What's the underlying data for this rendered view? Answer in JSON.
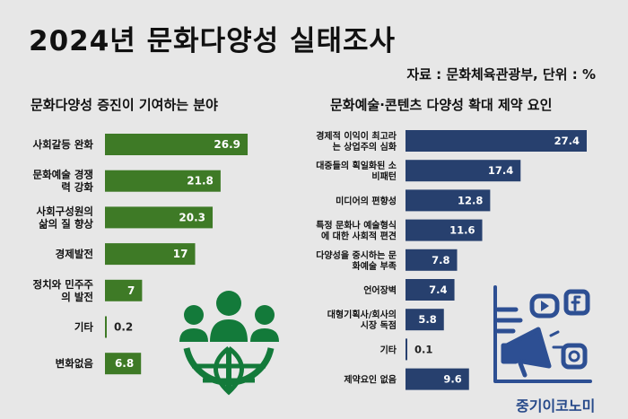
{
  "header": {
    "title": "2024년 문화다양성 실태조사",
    "source": "자료 : 문화체육관광부, 단위 : %"
  },
  "colors": {
    "left_bar": "#3e7a26",
    "right_bar": "#27406e",
    "background": "#e7e7e7",
    "icon_green": "#137a3a",
    "icon_blue": "#2d4f93"
  },
  "icons": {
    "left": "people-globe-icon",
    "right": "megaphone-social-media-icon"
  },
  "watermark": "중기이코노미",
  "chart_data": [
    {
      "type": "bar",
      "orientation": "horizontal",
      "title": "문화다양성 증진이 기여하는 분야",
      "categories": [
        [
          "사회갈등 완화"
        ],
        [
          "문화예술 경쟁",
          "력 강화"
        ],
        [
          "사회구성원의",
          "삶의 질 향상"
        ],
        [
          "경제발전"
        ],
        [
          "정치와 민주주",
          "의 발전"
        ],
        [
          "기타"
        ],
        [
          "변화없음"
        ]
      ],
      "values": [
        26.9,
        21.8,
        20.3,
        17,
        7,
        0.2,
        6.8
      ],
      "value_labels": [
        "26.9",
        "21.8",
        "20.3",
        "17",
        "7",
        "0.2",
        "6.8"
      ],
      "xlim": [
        0,
        27.4
      ]
    },
    {
      "type": "bar",
      "orientation": "horizontal",
      "title": "문화예술·콘텐츠 다양성 확대 제약 요인",
      "categories": [
        [
          "경제적 이익이 최고라",
          "는 상업주의 심화"
        ],
        [
          "대중들의 획일화된 소",
          "비패턴"
        ],
        [
          "미디어의 편향성"
        ],
        [
          "특정 문화나 예술형식",
          "에 대한 사회적 편견"
        ],
        [
          "다양성을 중시하는 문",
          "화예술 부족"
        ],
        [
          "언어장벽"
        ],
        [
          "대형기획사/회사의",
          "시장 독점"
        ],
        [
          "기타"
        ],
        [
          "제약요인 없음"
        ]
      ],
      "values": [
        27.4,
        17.4,
        12.8,
        11.6,
        7.8,
        7.4,
        5.8,
        0.1,
        9.6
      ],
      "value_labels": [
        "27.4",
        "17.4",
        "12.8",
        "11.6",
        "7.8",
        "7.4",
        "5.8",
        "0.1",
        "9.6"
      ],
      "xlim": [
        0,
        27.4
      ]
    }
  ]
}
